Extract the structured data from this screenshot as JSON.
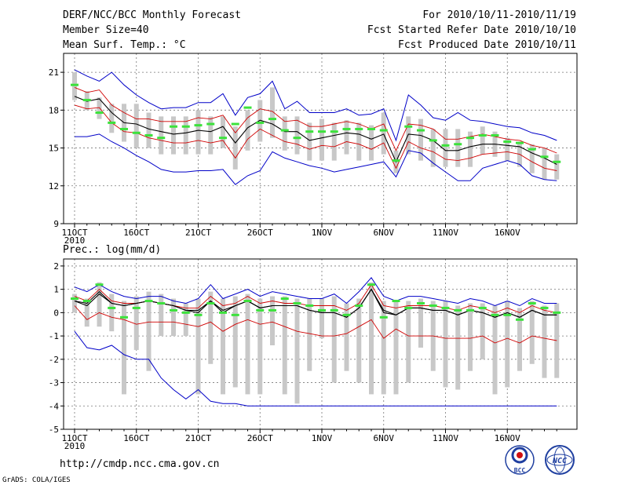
{
  "header": {
    "title": "DERF/NCC/BCC Monthly Forecast",
    "member_size": "Member Size=40",
    "variable": "Mean Surf. Temp.: °C",
    "period": "For 2010/10/11-2010/11/19",
    "started": "Fcst Started Refer Date 2010/10/10",
    "produced": "Fcst Produced Date 2010/10/11"
  },
  "footer": {
    "url": "http://cmdp.ncc.cma.gov.cn",
    "grads": "GrADS: COLA/IGES",
    "logo_bcc": "BCC",
    "logo_ncc": "NCC"
  },
  "colors": {
    "envelope": "#0000c8",
    "spread": "#d00000",
    "median": "#000000",
    "box": "#c8c8c8",
    "mean": "#3ce23c"
  },
  "chart_data": [
    {
      "type": "box-line",
      "title": "Mean Surf. Temp.: °C",
      "ylim": [
        9,
        22.5
      ],
      "yticks": [
        9,
        12,
        15,
        18,
        21
      ],
      "xtick_labels": [
        "11OCT",
        "16OCT",
        "21OCT",
        "26OCT",
        "1NOV",
        "6NOV",
        "11NOV",
        "16NOV"
      ],
      "year_label": "2010",
      "days": 40,
      "series": [
        {
          "name": "max",
          "values": [
            21.2,
            20.7,
            20.3,
            21.0,
            20.0,
            19.2,
            18.6,
            18.1,
            18.2,
            18.2,
            18.6,
            18.6,
            19.3,
            17.6,
            19.0,
            19.3,
            20.3,
            18.1,
            18.7,
            17.8,
            17.8,
            17.8,
            18.1,
            17.6,
            17.7,
            18.1,
            15.6,
            19.2,
            18.4,
            17.4,
            17.2,
            17.8,
            17.2,
            17.1,
            16.9,
            16.7,
            16.6,
            16.2,
            16.0,
            15.6
          ]
        },
        {
          "name": "upper",
          "values": [
            19.8,
            19.4,
            19.6,
            18.4,
            17.8,
            17.3,
            17.3,
            17.1,
            17.1,
            17.1,
            17.4,
            17.3,
            17.6,
            16.2,
            17.4,
            18.1,
            17.9,
            17.1,
            17.2,
            16.7,
            16.7,
            16.9,
            17.1,
            16.9,
            16.5,
            16.9,
            14.8,
            16.9,
            16.8,
            16.5,
            15.7,
            15.7,
            15.9,
            16.1,
            15.9,
            15.7,
            15.6,
            15.2,
            15.0,
            14.6
          ]
        },
        {
          "name": "median",
          "values": [
            19.1,
            18.7,
            18.9,
            17.8,
            17.0,
            16.9,
            16.5,
            16.3,
            16.1,
            16.2,
            16.4,
            16.3,
            16.7,
            15.4,
            16.6,
            17.2,
            16.9,
            16.3,
            16.3,
            15.6,
            15.8,
            16.0,
            16.2,
            16.1,
            15.7,
            16.1,
            13.9,
            16.1,
            16.0,
            15.6,
            14.8,
            14.8,
            15.1,
            15.3,
            15.3,
            15.2,
            15.1,
            14.6,
            14.2,
            13.7
          ]
        },
        {
          "name": "lower",
          "values": [
            18.4,
            18.1,
            18.2,
            17.0,
            16.3,
            16.2,
            15.8,
            15.6,
            15.4,
            15.4,
            15.6,
            15.4,
            15.6,
            14.2,
            15.7,
            16.5,
            16.0,
            15.5,
            15.3,
            14.9,
            15.2,
            15.1,
            15.5,
            15.3,
            14.9,
            15.4,
            13.4,
            15.5,
            15.0,
            14.7,
            14.1,
            14.0,
            14.2,
            14.5,
            14.6,
            14.7,
            14.5,
            13.9,
            13.4,
            13.2
          ]
        },
        {
          "name": "min",
          "values": [
            15.9,
            15.9,
            16.1,
            15.5,
            15.0,
            14.4,
            13.9,
            13.3,
            13.1,
            13.1,
            13.2,
            13.2,
            13.3,
            12.1,
            12.8,
            13.2,
            14.7,
            14.2,
            13.9,
            13.6,
            13.4,
            13.1,
            13.3,
            13.5,
            13.7,
            13.9,
            12.7,
            14.8,
            14.6,
            13.8,
            13.1,
            12.4,
            12.4,
            13.4,
            13.7,
            14.0,
            13.7,
            12.8,
            12.5,
            12.4
          ]
        }
      ],
      "box_top": [
        21.0,
        19.5,
        19.0,
        18.5,
        18.5,
        18.5,
        17.8,
        17.5,
        17.5,
        17.5,
        18.0,
        17.5,
        17.5,
        16.7,
        18.0,
        18.8,
        19.8,
        17.5,
        17.5,
        17.0,
        17.3,
        17.0,
        17.2,
        17.0,
        16.8,
        17.8,
        14.8,
        17.5,
        17.3,
        16.5,
        16.5,
        16.5,
        16.3,
        16.7,
        16.3,
        15.8,
        15.5,
        15.3,
        15.0,
        14.5
      ],
      "box_bottom": [
        18.8,
        18.0,
        17.3,
        16.2,
        15.5,
        15.0,
        15.0,
        14.5,
        14.5,
        14.5,
        14.5,
        14.5,
        15.0,
        13.3,
        14.8,
        15.5,
        15.8,
        14.8,
        14.5,
        14.0,
        14.0,
        14.0,
        14.5,
        14.0,
        14.0,
        14.5,
        13.0,
        14.5,
        14.0,
        13.5,
        13.5,
        13.5,
        13.5,
        14.5,
        14.3,
        14.0,
        13.5,
        13.0,
        12.5,
        12.5
      ],
      "ens_mean": [
        20.0,
        18.8,
        17.8,
        17.0,
        16.5,
        16.2,
        16.0,
        15.8,
        16.7,
        16.7,
        16.8,
        16.9,
        15.8,
        16.9,
        18.2,
        17.0,
        17.3,
        16.4,
        15.8,
        16.3,
        16.3,
        16.3,
        16.5,
        16.5,
        16.5,
        16.4,
        14.0,
        16.7,
        16.4,
        15.6,
        15.2,
        15.3,
        15.8,
        16.0,
        16.0,
        15.5,
        15.4,
        14.9,
        14.3,
        13.9
      ]
    },
    {
      "type": "box-line",
      "title": "Prec.: log(mm/d)",
      "ylim": [
        -5,
        2.3
      ],
      "yticks": [
        -5,
        -4,
        -3,
        -2,
        -1,
        0,
        1,
        2
      ],
      "xtick_labels": [
        "11OCT",
        "16OCT",
        "21OCT",
        "26OCT",
        "1NOV",
        "6NOV",
        "11NOV",
        "16NOV"
      ],
      "year_label": "2010",
      "days": 40,
      "series": [
        {
          "name": "max",
          "values": [
            1.1,
            0.9,
            1.2,
            0.9,
            0.7,
            0.6,
            0.7,
            0.7,
            0.5,
            0.4,
            0.6,
            1.2,
            0.6,
            0.8,
            1.0,
            0.7,
            0.9,
            0.8,
            0.7,
            0.6,
            0.6,
            0.8,
            0.4,
            0.9,
            1.5,
            0.7,
            0.5,
            0.7,
            0.7,
            0.6,
            0.5,
            0.4,
            0.6,
            0.5,
            0.3,
            0.5,
            0.3,
            0.6,
            0.4,
            0.4
          ]
        },
        {
          "name": "upper",
          "values": [
            0.7,
            0.5,
            1.0,
            0.5,
            0.4,
            0.4,
            0.5,
            0.4,
            0.3,
            0.2,
            0.2,
            0.7,
            0.3,
            0.4,
            0.7,
            0.4,
            0.5,
            0.4,
            0.4,
            0.3,
            0.3,
            0.3,
            0.1,
            0.4,
            1.2,
            0.3,
            0.2,
            0.3,
            0.3,
            0.3,
            0.2,
            0.1,
            0.3,
            0.2,
            0.0,
            0.2,
            0.0,
            0.3,
            0.1,
            0.0
          ]
        },
        {
          "name": "median",
          "values": [
            0.5,
            0.3,
            0.8,
            0.4,
            0.3,
            0.4,
            0.5,
            0.4,
            0.3,
            0.1,
            0.0,
            0.5,
            0.0,
            0.3,
            0.5,
            0.2,
            0.3,
            0.3,
            0.3,
            0.1,
            0.0,
            0.0,
            -0.2,
            0.2,
            1.0,
            0.0,
            -0.1,
            0.2,
            0.2,
            0.1,
            0.1,
            -0.1,
            0.1,
            0.0,
            -0.2,
            0.0,
            -0.2,
            0.1,
            -0.1,
            -0.1
          ]
        },
        {
          "name": "lower",
          "values": [
            0.3,
            -0.3,
            0.0,
            -0.2,
            -0.3,
            -0.5,
            -0.4,
            -0.4,
            -0.4,
            -0.5,
            -0.6,
            -0.4,
            -0.8,
            -0.5,
            -0.3,
            -0.5,
            -0.4,
            -0.6,
            -0.8,
            -0.9,
            -1.0,
            -1.0,
            -0.9,
            -0.6,
            -0.3,
            -1.1,
            -0.7,
            -1.0,
            -1.0,
            -1.0,
            -1.1,
            -1.1,
            -1.1,
            -1.0,
            -1.3,
            -1.1,
            -1.3,
            -1.0,
            -1.1,
            -1.2
          ]
        },
        {
          "name": "min",
          "values": [
            -0.8,
            -1.5,
            -1.6,
            -1.4,
            -1.8,
            -2.0,
            -2.0,
            -2.8,
            -3.3,
            -3.7,
            -3.3,
            -3.8,
            -3.9,
            -3.9,
            -4.0,
            -4.0,
            -4.0,
            -4.0,
            -4.0,
            -4.0,
            -4.0,
            -4.0,
            -4.0,
            -4.0,
            -4.0,
            -4.0,
            -4.0,
            -4.0,
            -4.0,
            -4.0,
            -4.0,
            -4.0,
            -4.0,
            -4.0,
            -4.0,
            -4.0,
            -4.0,
            -4.0,
            -4.0,
            -4.0
          ]
        },
        {
          "name": "mean",
          "values": [
            0.5,
            0.4,
            0.9,
            0.4,
            0.3,
            0.4,
            0.5,
            0.4,
            0.3,
            0.1,
            0.1,
            0.5,
            0.1,
            0.3,
            0.5,
            0.2,
            0.3,
            0.3,
            0.3,
            0.1,
            0.0,
            0.0,
            -0.2,
            0.2,
            1.0,
            0.1,
            -0.1,
            0.2,
            0.2,
            0.1,
            0.1,
            -0.1,
            0.1,
            0.0,
            -0.2,
            0.0,
            -0.2,
            0.1,
            -0.1,
            -0.1
          ]
        }
      ],
      "box_top": [
        0.8,
        0.6,
        1.3,
        0.8,
        0.5,
        0.7,
        0.9,
        0.8,
        0.6,
        0.4,
        0.6,
        0.9,
        0.6,
        0.7,
        0.8,
        0.6,
        0.7,
        0.7,
        0.6,
        0.6,
        0.6,
        0.7,
        0.4,
        0.6,
        1.3,
        0.5,
        0.5,
        0.5,
        0.6,
        0.5,
        0.5,
        0.3,
        0.4,
        0.4,
        0.3,
        0.5,
        0.2,
        0.5,
        0.3,
        0.4
      ],
      "box_bottom": [
        0.0,
        -0.6,
        -0.6,
        -0.8,
        -3.5,
        -1.6,
        -2.5,
        -1.0,
        -1.0,
        -1.0,
        -3.5,
        -2.2,
        -3.5,
        -3.2,
        -3.5,
        -3.5,
        -1.4,
        -3.5,
        -3.9,
        -2.5,
        -1.1,
        -3.0,
        -2.5,
        -3.0,
        -3.5,
        -3.5,
        -3.5,
        -3.0,
        -1.5,
        -2.5,
        -3.2,
        -3.3,
        -2.5,
        -2.0,
        -3.5,
        -3.2,
        -2.5,
        -2.2,
        -2.8,
        -2.8
      ],
      "ens_mean": [
        0.6,
        0.5,
        1.2,
        0.2,
        -0.2,
        0.2,
        0.5,
        0.4,
        0.1,
        0.0,
        -0.1,
        0.4,
        0.0,
        -0.1,
        0.5,
        0.1,
        0.1,
        0.6,
        0.4,
        0.3,
        0.1,
        0.1,
        -0.1,
        0.3,
        1.2,
        -0.2,
        0.5,
        0.2,
        0.4,
        0.3,
        0.2,
        0.1,
        0.1,
        0.2,
        -0.1,
        -0.1,
        -0.3,
        0.4,
        0.2,
        0.0
      ]
    }
  ]
}
